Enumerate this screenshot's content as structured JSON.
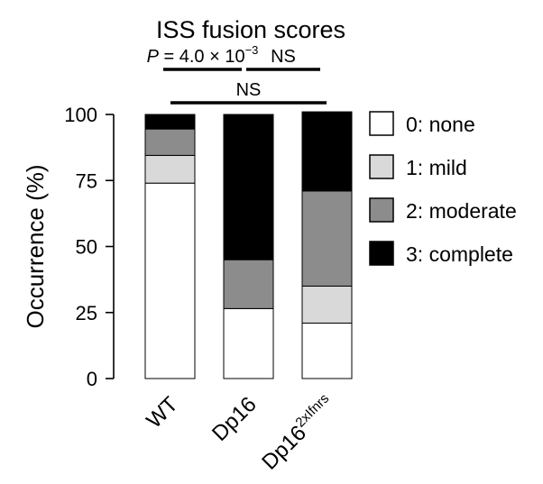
{
  "chart_data": {
    "type": "bar",
    "stacked": true,
    "title": "ISS fusion scores",
    "ylabel": "Occurrence (%)",
    "xlabel": "",
    "ylim": [
      0,
      100
    ],
    "yticks": [
      0,
      25,
      50,
      75,
      100
    ],
    "categories": [
      {
        "base": "WT",
        "sup": ""
      },
      {
        "base": "Dp16",
        "sup": ""
      },
      {
        "base": "Dp16",
        "sup": "2xIfnrs"
      }
    ],
    "series": [
      {
        "name": "0: none",
        "color": "#ffffff",
        "values": [
          74,
          26.5,
          21
        ]
      },
      {
        "name": "1: mild",
        "color": "#d9d9d9",
        "values": [
          10.5,
          0,
          14
        ]
      },
      {
        "name": "2: moderate",
        "color": "#8c8c8c",
        "values": [
          10,
          18.5,
          36
        ]
      },
      {
        "name": "3: complete",
        "color": "#000000",
        "values": [
          5.5,
          55,
          30
        ]
      }
    ],
    "legend_position": "right",
    "grid": false,
    "annotations": [
      {
        "pair": [
          0,
          1
        ],
        "level": 1,
        "p_italic": "P",
        "text": " = 4.0 × 10",
        "sup": "−3"
      },
      {
        "pair": [
          1,
          2
        ],
        "level": 1,
        "text": "NS"
      },
      {
        "pair": [
          0,
          2
        ],
        "level": 2,
        "text": "NS"
      }
    ]
  }
}
